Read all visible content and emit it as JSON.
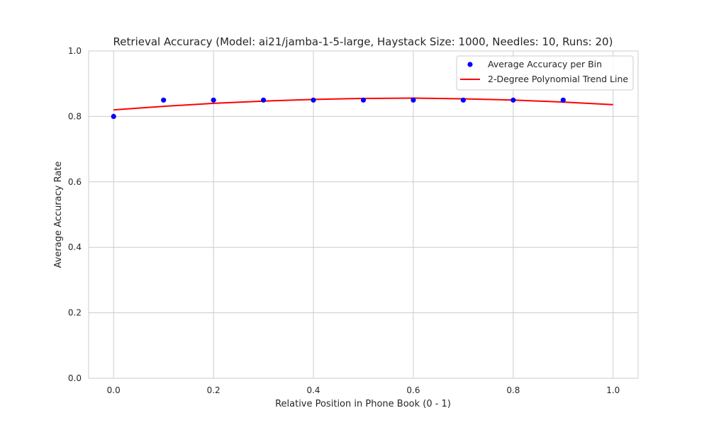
{
  "chart_data": {
    "type": "scatter",
    "title": "Retrieval Accuracy (Model: ai21/jamba-1-5-large, Haystack Size: 1000, Needles: 10, Runs: 20)",
    "xlabel": "Relative Position in Phone Book (0 - 1)",
    "ylabel": "Average Accuracy Rate",
    "xlim": [
      -0.05,
      1.05
    ],
    "ylim": [
      0.0,
      1.0
    ],
    "xticks": [
      "0.0",
      "0.2",
      "0.4",
      "0.6",
      "0.8",
      "1.0"
    ],
    "yticks": [
      "0.0",
      "0.2",
      "0.4",
      "0.6",
      "0.8",
      "1.0"
    ],
    "grid": true,
    "legend_position": "top-right",
    "series": [
      {
        "name": "Average Accuracy per Bin",
        "kind": "scatter",
        "color": "#0000ff",
        "x": [
          0.0,
          0.1,
          0.2,
          0.3,
          0.4,
          0.5,
          0.6,
          0.7,
          0.8,
          0.9
        ],
        "y": [
          0.8,
          0.85,
          0.85,
          0.85,
          0.85,
          0.85,
          0.85,
          0.85,
          0.85,
          0.85
        ]
      },
      {
        "name": "2-Degree Polynomial Trend Line",
        "kind": "line",
        "color": "#ff0000",
        "x": [
          0.0,
          0.1,
          0.2,
          0.3,
          0.4,
          0.5,
          0.6,
          0.7,
          0.8,
          0.9,
          1.0
        ],
        "y": [
          0.82,
          0.831,
          0.84,
          0.847,
          0.852,
          0.855,
          0.856,
          0.854,
          0.85,
          0.844,
          0.836
        ]
      }
    ]
  }
}
